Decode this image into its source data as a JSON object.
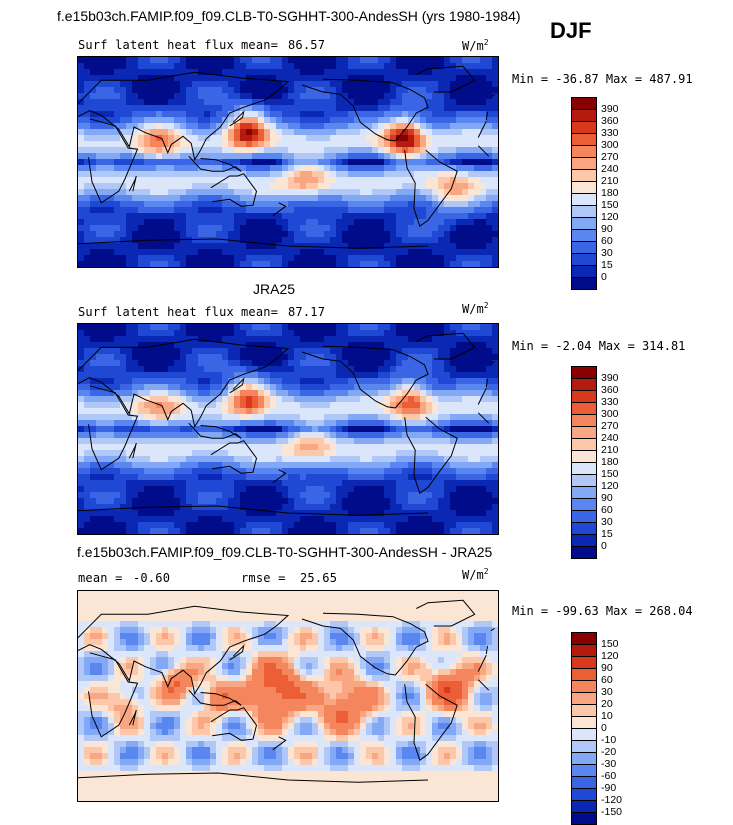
{
  "header": {
    "title": "f.e15b03ch.FAMIP.f09_f09.CLB-T0-SGHHT-300-AndesSH (yrs 1980-1984)",
    "season": "DJF"
  },
  "panels": [
    {
      "id": "model",
      "title": "",
      "variable": "Surf latent heat flux",
      "stat1_label": "mean=",
      "stat1_value": "86.57",
      "stat2_label": "",
      "stat2_value": "",
      "unit_base": "W/m",
      "unit_exp": "2",
      "min_max": "Min = -36.87 Max = 487.91",
      "palette": "abs",
      "legend_labels": [
        "390",
        "360",
        "330",
        "300",
        "270",
        "240",
        "210",
        "180",
        "150",
        "120",
        "90",
        "60",
        "30",
        "15",
        "0"
      ]
    },
    {
      "id": "obs",
      "title": "JRA25",
      "variable": "Surf latent heat flux",
      "stat1_label": "mean=",
      "stat1_value": "87.17",
      "stat2_label": "",
      "stat2_value": "",
      "unit_base": "W/m",
      "unit_exp": "2",
      "min_max": "Min =  -2.04 Max = 314.81",
      "palette": "abs",
      "legend_labels": [
        "390",
        "360",
        "330",
        "300",
        "270",
        "240",
        "210",
        "180",
        "150",
        "120",
        "90",
        "60",
        "30",
        "15",
        "0"
      ]
    },
    {
      "id": "diff",
      "title": "f.e15b03ch.FAMIP.f09_f09.CLB-T0-SGHHT-300-AndesSH - JRA25",
      "variable": "",
      "stat1_label": "mean =",
      "stat1_value": "-0.60",
      "stat2_label": "rmse =",
      "stat2_value": "25.65",
      "unit_base": "W/m",
      "unit_exp": "2",
      "min_max": "Min = -99.63 Max = 268.04",
      "palette": "diff",
      "legend_labels": [
        "150",
        "120",
        "90",
        "60",
        "30",
        "20",
        "10",
        "0",
        "-10",
        "-20",
        "-30",
        "-60",
        "-90",
        "-120",
        "-150"
      ]
    }
  ],
  "colors": {
    "abs": [
      "#000c8a",
      "#0a28b4",
      "#1f48d4",
      "#3a66e6",
      "#5a86f0",
      "#83a8f5",
      "#b0c8f8",
      "#dbe6fb",
      "#fbe6d6",
      "#fcc8a9",
      "#f9a682",
      "#f4855d",
      "#ec5e36",
      "#d8391c",
      "#b41a0d",
      "#890000"
    ],
    "diff": [
      "#000c8a",
      "#0a28b4",
      "#1f48d4",
      "#3a66e6",
      "#5a86f0",
      "#83a8f5",
      "#b0c8f8",
      "#dbe6fb",
      "#fbe6d6",
      "#fcc8a9",
      "#f9a682",
      "#f4855d",
      "#ec5e36",
      "#d8391c",
      "#b41a0d",
      "#890000"
    ]
  }
}
